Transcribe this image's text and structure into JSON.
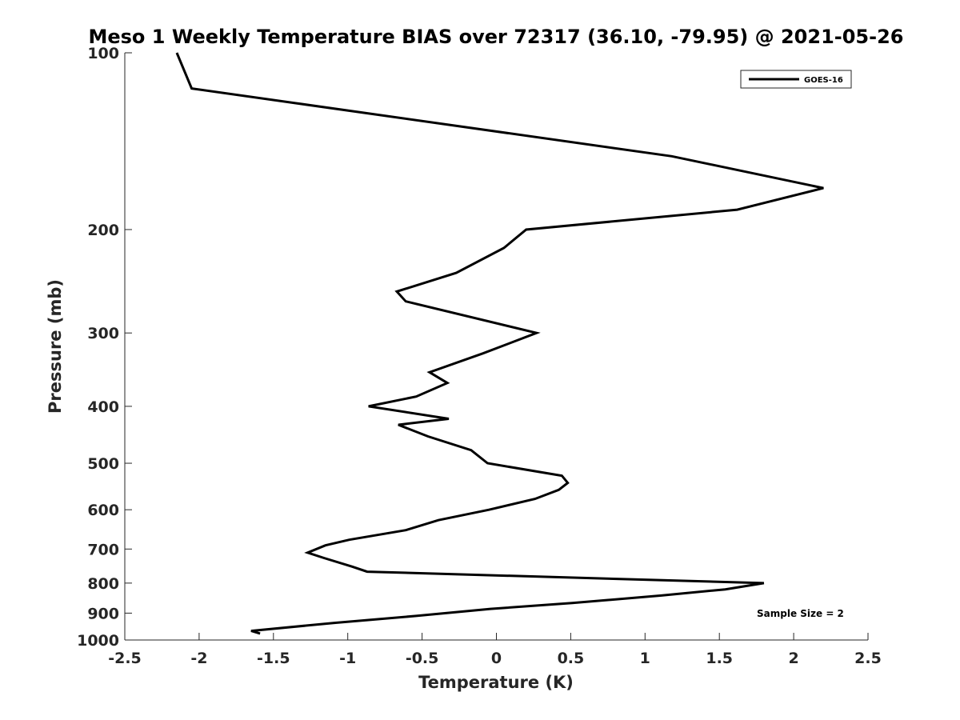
{
  "chart_data": {
    "type": "line",
    "title": "Meso 1 Weekly Temperature BIAS over 72317 (36.10, -79.95) @ 2021-05-26",
    "xlabel": "Temperature (K)",
    "ylabel": "Pressure (mb)",
    "xlim": [
      -2.5,
      2.5
    ],
    "ylim": [
      100,
      1000
    ],
    "y_scale": "log",
    "y_reversed": true,
    "x_ticks": [
      -2.5,
      -2,
      -1.5,
      -1,
      -0.5,
      0,
      0.5,
      1,
      1.5,
      2,
      2.5
    ],
    "x_tick_labels": [
      "-2.5",
      "-2",
      "-1.5",
      "-1",
      "-0.5",
      "0",
      "0.5",
      "1",
      "1.5",
      "2",
      "2.5"
    ],
    "y_ticks": [
      100,
      200,
      300,
      400,
      500,
      600,
      700,
      800,
      900,
      1000
    ],
    "y_tick_labels": [
      "100",
      "200",
      "300",
      "400",
      "500",
      "600",
      "700",
      "800",
      "900",
      "1000"
    ],
    "grid": false,
    "legend_position": "top-right",
    "annotation": "Sample Size = 2",
    "series": [
      {
        "name": "GOES-16",
        "color": "#000000",
        "x": [
          -2.15,
          -2.05,
          1.18,
          2.2,
          1.62,
          0.2,
          0.05,
          -0.27,
          -0.67,
          -0.61,
          0.27,
          -0.09,
          -0.45,
          -0.33,
          -0.54,
          -0.86,
          -0.32,
          -0.66,
          -0.46,
          -0.17,
          -0.06,
          0.44,
          0.48,
          0.42,
          0.26,
          -0.05,
          -0.39,
          -0.61,
          -0.99,
          -1.15,
          -1.27,
          -1.16,
          -0.97,
          -0.87,
          1.8,
          1.54,
          1.11,
          0.51,
          -0.04,
          -0.54,
          -1.09,
          -1.65,
          -1.59
        ],
        "y": [
          100,
          115,
          150,
          170,
          185,
          200,
          215,
          237,
          255,
          265,
          300,
          325,
          350,
          365,
          385,
          400,
          420,
          430,
          450,
          475,
          500,
          525,
          540,
          555,
          575,
          600,
          625,
          650,
          675,
          690,
          710,
          725,
          750,
          765,
          800,
          820,
          840,
          865,
          885,
          910,
          935,
          965,
          975
        ]
      }
    ]
  }
}
